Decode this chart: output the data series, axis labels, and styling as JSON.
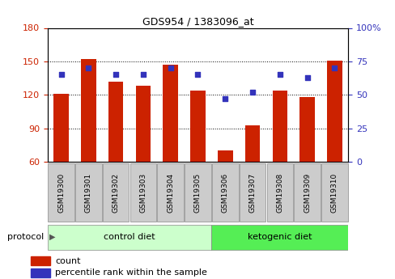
{
  "title": "GDS954 / 1383096_at",
  "samples": [
    "GSM19300",
    "GSM19301",
    "GSM19302",
    "GSM19303",
    "GSM19304",
    "GSM19305",
    "GSM19306",
    "GSM19307",
    "GSM19308",
    "GSM19309",
    "GSM19310"
  ],
  "counts": [
    121,
    152,
    132,
    128,
    147,
    124,
    70,
    93,
    124,
    118,
    151
  ],
  "percentiles": [
    65,
    70,
    65,
    65,
    70,
    65,
    47,
    52,
    65,
    63,
    70
  ],
  "ylim_left": [
    60,
    180
  ],
  "ylim_right": [
    0,
    100
  ],
  "yticks_left": [
    60,
    90,
    120,
    150,
    180
  ],
  "yticks_right": [
    0,
    25,
    50,
    75,
    100
  ],
  "ytick_labels_right": [
    "0",
    "25",
    "50",
    "75",
    "100%"
  ],
  "bar_color": "#cc2200",
  "dot_color": "#3333bb",
  "bar_width": 0.55,
  "group_ranges": [
    [
      0,
      5
    ],
    [
      6,
      10
    ]
  ],
  "group_labels": [
    "control diet",
    "ketogenic diet"
  ],
  "group_colors": [
    "#ccffcc",
    "#55ee55"
  ],
  "sample_box_color": "#cccccc",
  "sample_box_edge": "#888888",
  "protocol_label": "protocol",
  "legend_count": "count",
  "legend_percentile": "percentile rank within the sample",
  "bg_color": "#ffffff",
  "tick_color_left": "#cc2200",
  "tick_color_right": "#3333bb",
  "bar_bottom": 60
}
